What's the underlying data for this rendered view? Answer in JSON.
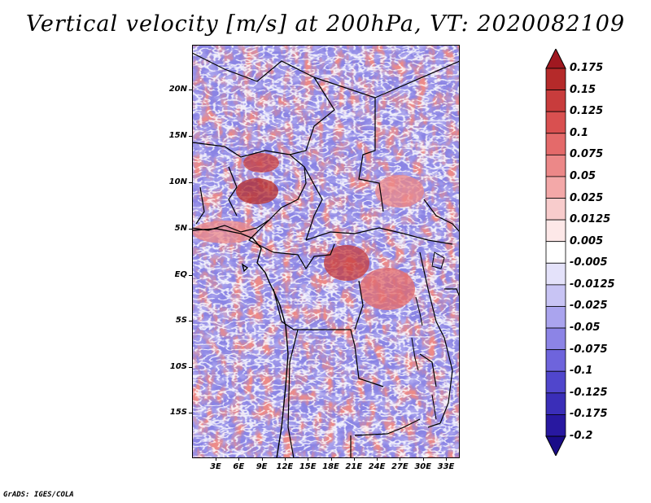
{
  "title": "Vertical velocity [m/s] at 200hPa, VT: 2020082109",
  "credit": "GrADS: IGES/COLA",
  "map": {
    "lat_labels": [
      "20N",
      "15N",
      "10N",
      "5N",
      "EQ",
      "5S",
      "10S",
      "15S"
    ],
    "lon_labels": [
      "3E",
      "6E",
      "9E",
      "12E",
      "15E",
      "18E",
      "21E",
      "24E",
      "27E",
      "30E",
      "33E"
    ]
  },
  "colorbar": {
    "labels": [
      "0.175",
      "0.15",
      "0.125",
      "0.1",
      "0.075",
      "0.05",
      "0.025",
      "0.0125",
      "0.005",
      "-0.005",
      "-0.0125",
      "-0.025",
      "-0.05",
      "-0.075",
      "-0.1",
      "-0.125",
      "-0.175",
      "-0.2"
    ],
    "colors": [
      "#a01820",
      "#b52a2a",
      "#c83c3c",
      "#d95050",
      "#e46a6a",
      "#ec8888",
      "#f3a8a8",
      "#f8cccc",
      "#fde8e8",
      "#ffffff",
      "#e4e2fa",
      "#c8c4f4",
      "#aaa4ee",
      "#8c84e6",
      "#6e64dc",
      "#5046cc",
      "#3a2eb8",
      "#2818a0",
      "#1a0c88"
    ]
  }
}
